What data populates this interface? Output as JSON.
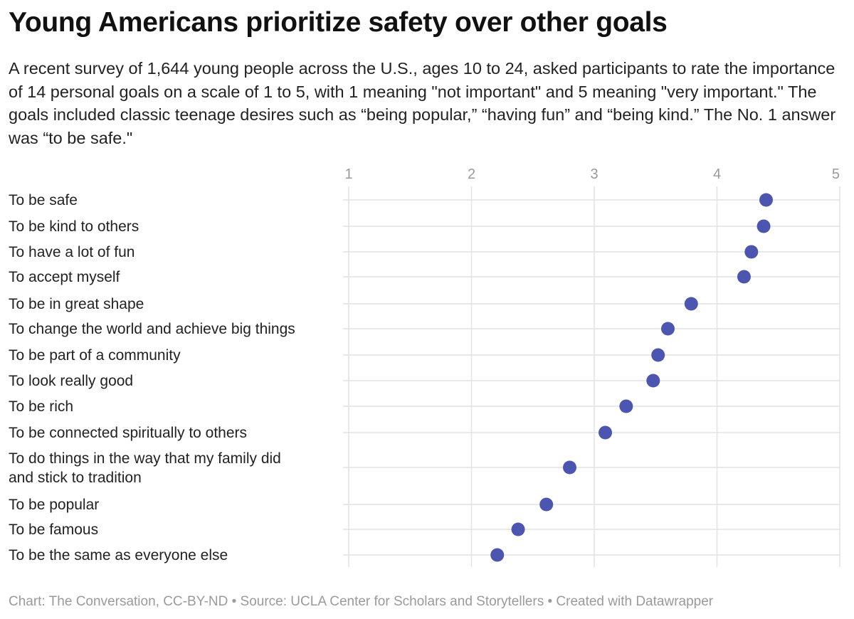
{
  "header": {
    "title": "Young Americans prioritize safety over other goals",
    "subtitle": "A recent survey of 1,644 young people across the U.S., ages 10 to 24, asked participants to rate the importance of 14 personal goals on a scale of 1 to 5, with 1 meaning \"not important\" and 5 meaning \"very important.\" The goals included classic teenage desires such as “being popular,” “having fun” and “being kind.” The No. 1 answer was “to be safe.\""
  },
  "footer": {
    "credit": "Chart: The Conversation, CC-BY-ND • Source: UCLA Center for Scholars and Storytellers • Created with Datawrapper"
  },
  "chart_data": {
    "type": "scatter",
    "title": "Young Americans prioritize safety over other goals",
    "xlim": [
      1,
      5
    ],
    "xticks": [
      1,
      2,
      3,
      4,
      5
    ],
    "grid": true,
    "dot_color": "#4c56b0",
    "categories": [
      [
        "To be safe"
      ],
      [
        "To be kind to others"
      ],
      [
        "To have a lot of fun"
      ],
      [
        "To accept myself"
      ],
      [
        "To be in great shape"
      ],
      [
        "To change the world and achieve big things"
      ],
      [
        "To be part of a community"
      ],
      [
        "To look really good"
      ],
      [
        "To be rich"
      ],
      [
        "To be connected spiritually to others"
      ],
      [
        "To do things in the way that my family did",
        "and stick to tradition"
      ],
      [
        "To be popular"
      ],
      [
        "To be famous"
      ],
      [
        "To be the same as everyone else"
      ]
    ],
    "values": [
      4.4,
      4.38,
      4.28,
      4.22,
      3.79,
      3.6,
      3.52,
      3.48,
      3.26,
      3.09,
      2.8,
      2.61,
      2.38,
      2.21
    ]
  }
}
